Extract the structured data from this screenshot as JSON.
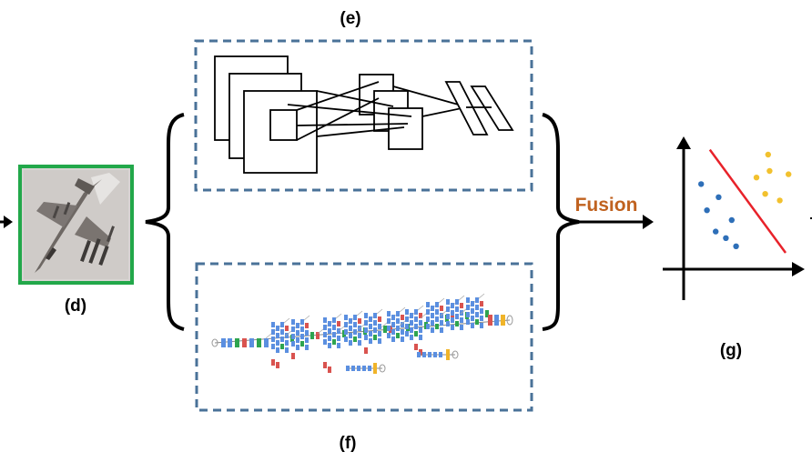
{
  "labels": {
    "d": "(d)",
    "e": "(e)",
    "f": "(f)",
    "g": "(g)",
    "fusion": "Fusion"
  },
  "colors": {
    "frame_dashed": "#4a7298",
    "image_border": "#22a84a",
    "fusion_text": "#c0621f",
    "boundary_line": "#e8222a",
    "class_a_points": "#2e6fb8",
    "class_b_points": "#f2c12e",
    "block_blue": "#5b8fe0",
    "block_red": "#d9534f",
    "block_green": "#2ea44f",
    "block_yellow": "#f0b429"
  },
  "icons": {
    "input_image": "fighter-jet-photo-icon",
    "cnn_e": "cnn-architecture-diagram-icon",
    "cnn_f": "inception-network-diagram-icon",
    "classifier": "linear-classifier-scatter-icon"
  },
  "scatter": {
    "class_a": [
      [
        1.2,
        5.2
      ],
      [
        2.4,
        4.4
      ],
      [
        1.6,
        3.6
      ],
      [
        3.3,
        3.0
      ],
      [
        2.2,
        2.3
      ],
      [
        2.9,
        1.9
      ],
      [
        3.6,
        1.4
      ]
    ],
    "class_b": [
      [
        5.8,
        7.0
      ],
      [
        5.9,
        6.0
      ],
      [
        5.0,
        5.6
      ],
      [
        5.6,
        4.6
      ],
      [
        7.2,
        5.8
      ],
      [
        6.6,
        4.2
      ]
    ],
    "boundary": [
      [
        1.8,
        7.3
      ],
      [
        7.0,
        1.0
      ]
    ]
  }
}
